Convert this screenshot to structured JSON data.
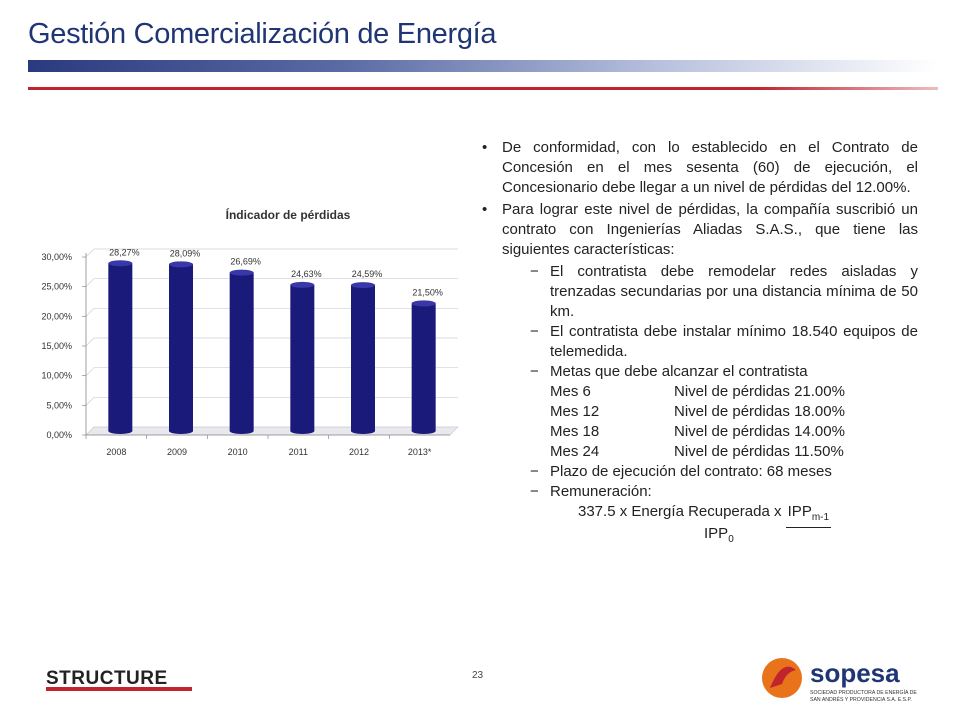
{
  "slide": {
    "title": "Gestión Comercialización de Energía",
    "page_number": "23"
  },
  "chart_data": {
    "type": "bar",
    "title": "Índicador de pérdidas",
    "categories": [
      "2008",
      "2009",
      "2010",
      "2011",
      "2012",
      "2013*"
    ],
    "values": [
      28.27,
      28.09,
      26.69,
      24.63,
      24.59,
      21.5
    ],
    "data_labels": [
      "28,27%",
      "28,09%",
      "26,69%",
      "24,63%",
      "24,59%",
      "21,50%"
    ],
    "ylim": [
      0,
      30
    ],
    "y_ticks": [
      "0,00%",
      "5,00%",
      "10,00%",
      "15,00%",
      "20,00%",
      "25,00%",
      "30,00%"
    ],
    "grid": true,
    "legend": "none",
    "bar_color": "#1a1a7a"
  },
  "body": {
    "bullet1": "De conformidad, con lo establecido en el Contrato de Concesión en el mes sesenta (60) de ejecución, el Concesionario debe llegar a un nivel de pérdidas del 12.00%.",
    "bullet2": "Para lograr este nivel de pérdidas, la compañía suscribió un contrato con Ingenierías Aliadas S.A.S., que tiene las siguientes características:",
    "dash_symbol": "−",
    "bullet_symbol": "•",
    "sub1": "El contratista debe remodelar redes aisladas y trenzadas secundarias por una distancia mínima de 50 km.",
    "sub2": "El contratista debe instalar mínimo 18.540 equipos de telemedida.",
    "sub3": "Metas que debe alcanzar el contratista",
    "metas": [
      {
        "mes": "Mes 6",
        "nivel": "Nivel de pérdidas 21.00%"
      },
      {
        "mes": "Mes 12",
        "nivel": "Nivel de pérdidas 18.00%"
      },
      {
        "mes": "Mes 18",
        "nivel": "Nivel de pérdidas 14.00%"
      },
      {
        "mes": "Mes 24",
        "nivel": "Nivel de pérdidas 11.50%"
      }
    ],
    "sub4": "Plazo de ejecución del contrato: 68 meses",
    "sub5": "Remuneración:",
    "formula_prefix": "337.5 x Energía Recuperada x",
    "formula_num": "IPP",
    "formula_num_sub": "m-1",
    "formula_den": "IPP",
    "formula_den_sub": "0"
  },
  "logos": {
    "structure_text": "STRUCTURE",
    "sopesa_text": "sopesa",
    "sopesa_sub1": "SOCIEDAD PRODUCTORA DE ENERGÍA DE",
    "sopesa_sub2": "SAN ANDRÉS Y PROVIDENCIA S.A. E.S.P."
  },
  "colors": {
    "title": "#1f3575",
    "band": "#2a3a7e",
    "redline": "#c0242c",
    "sopesa_blue": "#1f3575",
    "sopesa_orange": "#e8731a",
    "sopesa_red": "#c0242c"
  }
}
